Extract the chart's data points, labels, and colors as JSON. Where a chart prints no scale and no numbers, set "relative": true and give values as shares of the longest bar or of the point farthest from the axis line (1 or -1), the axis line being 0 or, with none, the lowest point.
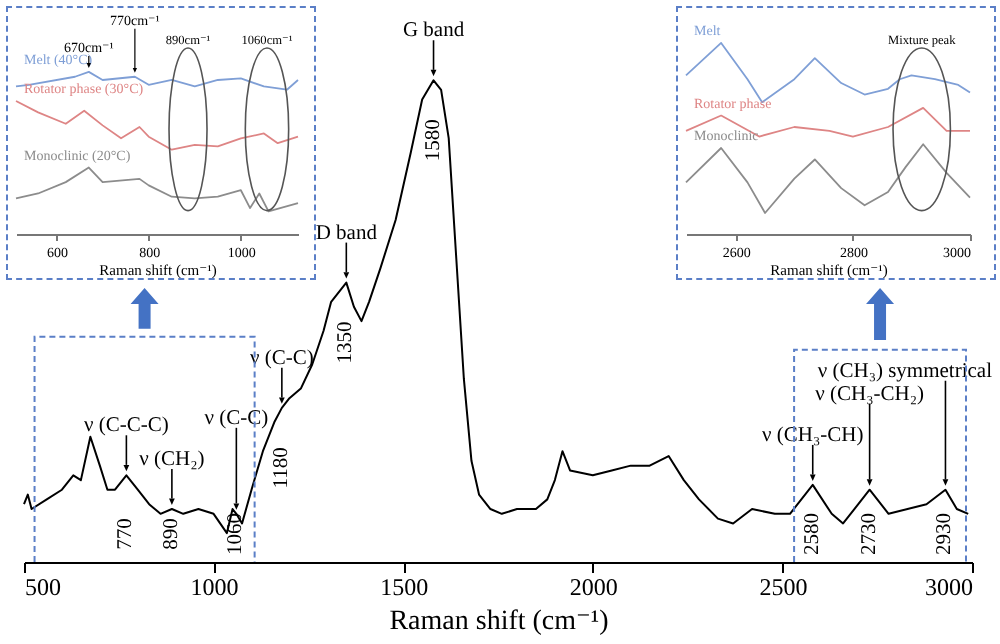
{
  "chart_data": [
    {
      "type": "line",
      "relative": true,
      "xlabel": "Raman shift (cm⁻¹)",
      "xlim": [
        512,
        1124
      ],
      "xticks": [
        600,
        800,
        1000
      ],
      "series": [
        {
          "name": "Melt (40°C)",
          "color": "#7f9fd6",
          "x": [
            512,
            540,
            640,
            670,
            700,
            770,
            800,
            850,
            900,
            950,
            1000,
            1050,
            1100,
            1124
          ],
          "values": [
            0.91,
            0.92,
            0.97,
            1,
            0.95,
            0.97,
            0.92,
            0.95,
            0.91,
            0.95,
            0.96,
            0.91,
            0.89,
            0.95
          ]
        },
        {
          "name": "Rotator phase (30°C)",
          "color": "#de8585",
          "x": [
            512,
            560,
            620,
            660,
            700,
            740,
            780,
            800,
            850,
            900,
            950,
            1000,
            1050,
            1080,
            1124
          ],
          "values": [
            0.82,
            0.75,
            0.68,
            0.76,
            0.67,
            0.59,
            0.66,
            0.6,
            0.52,
            0.55,
            0.54,
            0.59,
            0.62,
            0.56,
            0.6
          ]
        },
        {
          "name": "Monoclinic (20°C)",
          "color": "#8c8c8c",
          "x": [
            512,
            560,
            620,
            670,
            700,
            780,
            800,
            850,
            900,
            950,
            1000,
            1020,
            1040,
            1060,
            1124
          ],
          "values": [
            0.22,
            0.25,
            0.32,
            0.41,
            0.32,
            0.34,
            0.3,
            0.23,
            0.22,
            0.23,
            0.27,
            0.16,
            0.25,
            0.14,
            0.19
          ]
        }
      ],
      "annotations": [
        {
          "text": "670cm⁻¹",
          "x": 670,
          "y": 1
        },
        {
          "text": "770cm⁻¹",
          "x": 770,
          "y": 0.97
        },
        "890cm⁻¹",
        "1060cm⁻¹"
      ]
    },
    {
      "type": "line",
      "relative": true,
      "xlabel": "Raman shift (cm⁻¹)",
      "xlim": [
        2515,
        3000
      ],
      "xticks": [
        2600,
        2800,
        3000
      ],
      "series": [
        {
          "name": "Melt",
          "color": "#7f9fd6",
          "x": [
            2515,
            2575,
            2620,
            2645,
            2700,
            2735,
            2780,
            2820,
            2860,
            2880,
            2900,
            2940,
            2980,
            3000
          ],
          "values": [
            0.83,
            1,
            0.81,
            0.69,
            0.81,
            0.92,
            0.79,
            0.73,
            0.76,
            0.81,
            0.83,
            0.81,
            0.78,
            0.74
          ]
        },
        {
          "name": "Rotator phase",
          "color": "#de8585",
          "x": [
            2515,
            2575,
            2640,
            2700,
            2760,
            2800,
            2860,
            2920,
            2960,
            3000
          ],
          "values": [
            0.54,
            0.62,
            0.51,
            0.56,
            0.54,
            0.51,
            0.56,
            0.66,
            0.54,
            0.54
          ]
        },
        {
          "name": "Monoclinic",
          "color": "#8c8c8c",
          "x": [
            2515,
            2575,
            2620,
            2650,
            2700,
            2735,
            2780,
            2820,
            2860,
            2890,
            2920,
            2960,
            3000
          ],
          "values": [
            0.27,
            0.45,
            0.27,
            0.11,
            0.29,
            0.39,
            0.24,
            0.15,
            0.22,
            0.35,
            0.47,
            0.32,
            0.19
          ]
        }
      ],
      "annotations": [
        "Mixture peak"
      ]
    },
    {
      "type": "line",
      "relative": true,
      "xlabel": "Raman shift (cm⁻¹)",
      "xlim": [
        500,
        3000
      ],
      "xticks": [
        500,
        1000,
        1500,
        2000,
        2500,
        3000
      ],
      "series": [
        {
          "color": "#000000",
          "x": [
            500,
            510,
            520,
            560,
            600,
            630,
            650,
            675,
            700,
            720,
            740,
            770,
            800,
            830,
            860,
            890,
            920,
            960,
            1000,
            1035,
            1050,
            1060,
            1075,
            1100,
            1130,
            1160,
            1180,
            1200,
            1230,
            1260,
            1290,
            1310,
            1350,
            1370,
            1390,
            1410,
            1440,
            1480,
            1520,
            1550,
            1580,
            1600,
            1620,
            1640,
            1660,
            1680,
            1700,
            1730,
            1760,
            1800,
            1850,
            1880,
            1900,
            1920,
            1940,
            2000,
            2050,
            2100,
            2150,
            2200,
            2240,
            2280,
            2330,
            2370,
            2420,
            2480,
            2520,
            2580,
            2630,
            2660,
            2730,
            2780,
            2830,
            2880,
            2930,
            2960,
            2990
          ],
          "values": [
            0.12,
            0.14,
            0.11,
            0.13,
            0.15,
            0.18,
            0.17,
            0.26,
            0.2,
            0.15,
            0.15,
            0.18,
            0.15,
            0.12,
            0.1,
            0.11,
            0.1,
            0.11,
            0.1,
            0.06,
            0.11,
            0.1,
            0.08,
            0.15,
            0.23,
            0.29,
            0.32,
            0.34,
            0.36,
            0.41,
            0.48,
            0.54,
            0.58,
            0.53,
            0.5,
            0.54,
            0.61,
            0.71,
            0.85,
            0.96,
            1,
            0.98,
            0.88,
            0.63,
            0.38,
            0.21,
            0.14,
            0.11,
            0.1,
            0.11,
            0.11,
            0.13,
            0.17,
            0.23,
            0.19,
            0.18,
            0.19,
            0.2,
            0.2,
            0.22,
            0.17,
            0.13,
            0.09,
            0.08,
            0.11,
            0.1,
            0.1,
            0.16,
            0.1,
            0.08,
            0.15,
            0.1,
            0.11,
            0.12,
            0.15,
            0.11,
            0.1
          ]
        }
      ],
      "annotations": [
        {
          "text": "G band",
          "x": 1580,
          "y": 1
        },
        {
          "text": "1580",
          "x": 1580,
          "y": 1
        },
        {
          "text": "D band",
          "x": 1350,
          "y": 0.58
        },
        {
          "text": "1350",
          "x": 1350,
          "y": 0.58
        },
        {
          "text": "ν (C-C)",
          "x": 1180,
          "y": 0.32
        },
        {
          "text": "1180",
          "x": 1180,
          "y": 0.32
        },
        {
          "text": "ν (C-C-C)",
          "x": 770,
          "y": 0.18
        },
        {
          "text": "770",
          "x": 770,
          "y": 0.18
        },
        {
          "text": "ν (CH₂)",
          "x": 890,
          "y": 0.11
        },
        {
          "text": "890",
          "x": 890,
          "y": 0.11
        },
        {
          "text": "ν (C-C)",
          "x": 1060,
          "y": 0.1
        },
        {
          "text": "1060",
          "x": 1060,
          "y": 0.1
        },
        {
          "text": "ν (CH₃-CH)",
          "x": 2580,
          "y": 0.16
        },
        {
          "text": "2580",
          "x": 2580,
          "y": 0.16
        },
        {
          "text": "ν (CH₃-CH₂)",
          "x": 2730,
          "y": 0.15
        },
        {
          "text": "2730",
          "x": 2730,
          "y": 0.15
        },
        {
          "text": "ν (CH₃) symmetrical",
          "x": 2930,
          "y": 0.15
        },
        {
          "text": "2930",
          "x": 2930,
          "y": 0.15
        }
      ]
    }
  ]
}
